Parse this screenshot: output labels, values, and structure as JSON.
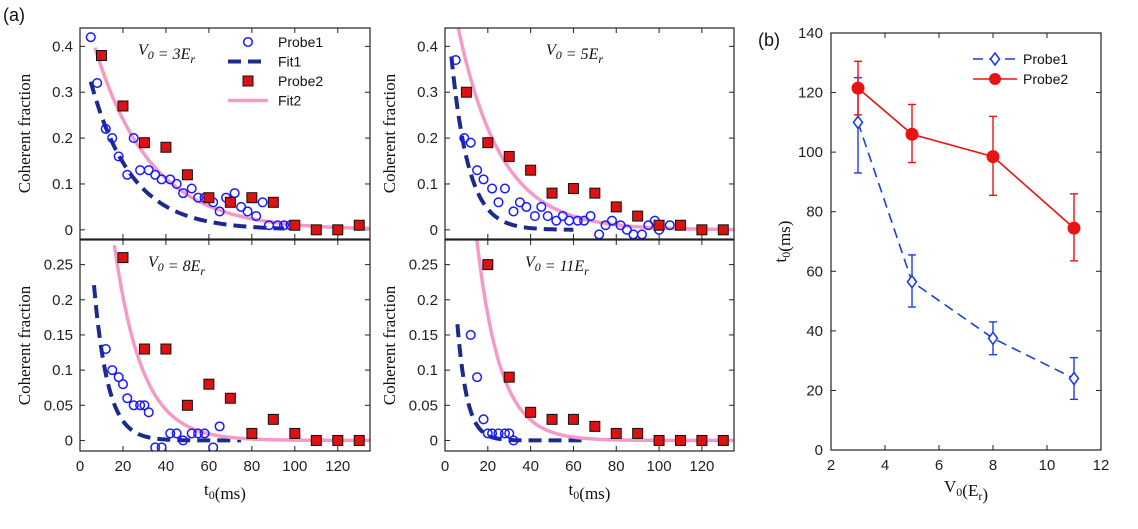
{
  "panel_labels": [
    "(a)",
    "(b)"
  ],
  "colors": {
    "probe1": "#1a1aff",
    "fit1": "#1c2a8c",
    "probe2": "#dd1111",
    "fit2": "#f49ac6",
    "probe1_b": "#1d3ee0",
    "probe2_b": "#e81414"
  },
  "chart_data": [
    {
      "type": "scatter",
      "annotation": "V_0 = 3E_r",
      "ylabel": "Coherent fraction",
      "xlabel": "",
      "xlim": [
        0,
        135
      ],
      "ylim": [
        -0.02,
        0.44
      ],
      "yticks": [
        "0",
        "0.1",
        "0.2",
        "0.3",
        "0.4"
      ],
      "legend": [
        "Probe1",
        "Fit1",
        "Probe2",
        "Fit2"
      ],
      "legend_position": "top-right",
      "series": [
        {
          "name": "Probe1",
          "marker": "circle",
          "x": [
            5,
            8,
            12,
            15,
            18,
            22,
            25,
            28,
            32,
            35,
            38,
            42,
            45,
            48,
            52,
            55,
            58,
            62,
            65,
            68,
            72,
            75,
            78,
            82,
            85,
            88,
            92,
            95,
            98
          ],
          "y": [
            0.42,
            0.32,
            0.22,
            0.2,
            0.16,
            0.12,
            0.2,
            0.13,
            0.13,
            0.12,
            0.11,
            0.11,
            0.1,
            0.08,
            0.09,
            0.07,
            0.07,
            0.06,
            0.04,
            0.07,
            0.08,
            0.05,
            0.04,
            0.03,
            0.06,
            0.01,
            0.01,
            0.01,
            0.01
          ]
        },
        {
          "name": "Fit1",
          "line": "dashed",
          "a": 0.42,
          "tau": 19,
          "xrange": [
            5,
            95
          ]
        },
        {
          "name": "Probe2",
          "marker": "square",
          "x": [
            10,
            20,
            30,
            40,
            50,
            60,
            70,
            80,
            90,
            100,
            110,
            120,
            130
          ],
          "y": [
            0.38,
            0.27,
            0.19,
            0.18,
            0.12,
            0.07,
            0.06,
            0.07,
            0.06,
            0.01,
            0.0,
            0.0,
            0.01
          ]
        },
        {
          "name": "Fit2",
          "line": "solid",
          "a": 0.52,
          "tau": 26,
          "xrange": [
            7,
            135
          ]
        }
      ]
    },
    {
      "type": "scatter",
      "annotation": "V_0 = 5E_r",
      "ylabel": "Coherent fraction",
      "xlabel": "",
      "xlim": [
        0,
        135
      ],
      "ylim": [
        -0.02,
        0.44
      ],
      "yticks": [
        "0",
        "0.1",
        "0.2",
        "0.3",
        "0.4"
      ],
      "series": [
        {
          "name": "Probe1",
          "marker": "circle",
          "x": [
            5,
            9,
            12,
            15,
            18,
            22,
            25,
            28,
            32,
            35,
            38,
            42,
            45,
            48,
            52,
            55,
            58,
            62,
            65,
            68,
            72,
            75,
            78,
            82,
            85,
            88,
            92,
            95,
            98,
            100,
            105
          ],
          "y": [
            0.37,
            0.2,
            0.19,
            0.13,
            0.11,
            0.09,
            0.06,
            0.09,
            0.04,
            0.06,
            0.05,
            0.03,
            0.05,
            0.03,
            0.02,
            0.03,
            0.02,
            0.02,
            0.02,
            0.03,
            -0.01,
            0.01,
            0.02,
            0.01,
            0.0,
            -0.01,
            -0.01,
            0.01,
            0.02,
            0.0,
            0.01
          ]
        },
        {
          "name": "Fit1",
          "line": "dashed",
          "a": 0.55,
          "tau": 8,
          "xrange": [
            3,
            60
          ]
        },
        {
          "name": "Probe2",
          "marker": "square",
          "x": [
            10,
            20,
            30,
            40,
            50,
            60,
            70,
            80,
            90,
            100,
            110,
            120,
            130
          ],
          "y": [
            0.3,
            0.19,
            0.16,
            0.13,
            0.08,
            0.09,
            0.08,
            0.05,
            0.03,
            0.01,
            0.01,
            0.0,
            0.0
          ]
        },
        {
          "name": "Fit2",
          "line": "solid",
          "a": 0.6,
          "tau": 20,
          "xrange": [
            6,
            135
          ]
        }
      ]
    },
    {
      "type": "scatter",
      "annotation": "V_0 = 8E_r",
      "ylabel": "Coherent fraction",
      "xlabel": "t_0(ms)",
      "xlim": [
        0,
        135
      ],
      "ylim": [
        -0.015,
        0.285
      ],
      "yticks": [
        "0",
        "0.05",
        "0.1",
        "0.15",
        "0.2",
        "0.25"
      ],
      "xticks": [
        "0",
        "20",
        "40",
        "60",
        "80",
        "100",
        "120"
      ],
      "series": [
        {
          "name": "Probe1",
          "marker": "circle",
          "x": [
            12,
            15,
            18,
            20,
            22,
            25,
            28,
            30,
            32,
            35,
            38,
            42,
            45,
            48,
            52,
            55,
            58,
            62,
            65
          ],
          "y": [
            0.13,
            0.1,
            0.09,
            0.08,
            0.06,
            0.05,
            0.05,
            0.05,
            0.04,
            -0.01,
            -0.01,
            0.01,
            0.01,
            0.0,
            0.01,
            0.01,
            0.01,
            -0.01,
            0.02
          ]
        },
        {
          "name": "Fit1",
          "line": "dashed",
          "a": 0.6,
          "tau": 6.5,
          "xrange": [
            6.5,
            75
          ]
        },
        {
          "name": "Probe2",
          "marker": "square",
          "x": [
            20,
            30,
            40,
            50,
            60,
            70,
            80,
            90,
            100,
            110,
            120,
            130
          ],
          "y": [
            0.26,
            0.13,
            0.13,
            0.05,
            0.08,
            0.06,
            0.01,
            0.03,
            0.01,
            0.0,
            0.0,
            0.0
          ]
        },
        {
          "name": "Fit2",
          "line": "solid",
          "a": 0.95,
          "tau": 13,
          "xrange": [
            16,
            135
          ]
        }
      ]
    },
    {
      "type": "scatter",
      "annotation": "V_0 = 11E_r",
      "ylabel": "Coherent fraction",
      "xlabel": "t_0(ms)",
      "xlim": [
        0,
        135
      ],
      "ylim": [
        -0.015,
        0.285
      ],
      "yticks": [
        "0",
        "0.05",
        "0.1",
        "0.15",
        "0.2",
        "0.25"
      ],
      "xticks": [
        "0",
        "20",
        "40",
        "60",
        "80",
        "100",
        "120"
      ],
      "series": [
        {
          "name": "Probe1",
          "marker": "circle",
          "x": [
            12,
            15,
            18,
            20,
            22,
            25,
            28,
            30,
            32
          ],
          "y": [
            0.15,
            0.09,
            0.03,
            0.01,
            0.01,
            0.01,
            0.01,
            0.01,
            0.0
          ]
        },
        {
          "name": "Fit1",
          "line": "dashed",
          "a": 0.6,
          "tau": 4.5,
          "xrange": [
            5.8,
            65
          ]
        },
        {
          "name": "Probe2",
          "marker": "square",
          "x": [
            20,
            30,
            40,
            50,
            60,
            70,
            80,
            90,
            100,
            110,
            120,
            130
          ],
          "y": [
            0.25,
            0.09,
            0.04,
            0.03,
            0.03,
            0.02,
            0.01,
            0.01,
            0.0,
            0.0,
            0.0,
            0.0
          ]
        },
        {
          "name": "Fit2",
          "line": "solid",
          "a": 1.1,
          "tau": 11,
          "xrange": [
            13,
            135
          ]
        }
      ]
    },
    {
      "type": "line",
      "xlabel": "V_0(E_r)",
      "ylabel": "t_0(ms)",
      "xlim": [
        2,
        12
      ],
      "ylim": [
        0,
        140
      ],
      "xticks": [
        "2",
        "4",
        "6",
        "8",
        "10",
        "12"
      ],
      "yticks": [
        "0",
        "20",
        "40",
        "60",
        "80",
        "100",
        "120",
        "140"
      ],
      "legend": [
        "Probe1",
        "Probe2"
      ],
      "legend_position": "top-right",
      "series": [
        {
          "name": "Probe1",
          "marker": "diamond",
          "line": "dashed",
          "x": [
            3,
            5,
            8,
            11
          ],
          "y": [
            110,
            56.5,
            37.5,
            24
          ],
          "err_low": [
            93,
            48,
            32,
            17
          ],
          "err_high": [
            125,
            65.5,
            43,
            31
          ]
        },
        {
          "name": "Probe2",
          "marker": "circle",
          "line": "solid",
          "x": [
            3,
            5,
            8,
            11
          ],
          "y": [
            121.5,
            106,
            98.5,
            74.5
          ],
          "err_low": [
            112.5,
            96.5,
            85.5,
            63.5
          ],
          "err_high": [
            130.5,
            116,
            112,
            86
          ]
        }
      ]
    }
  ]
}
